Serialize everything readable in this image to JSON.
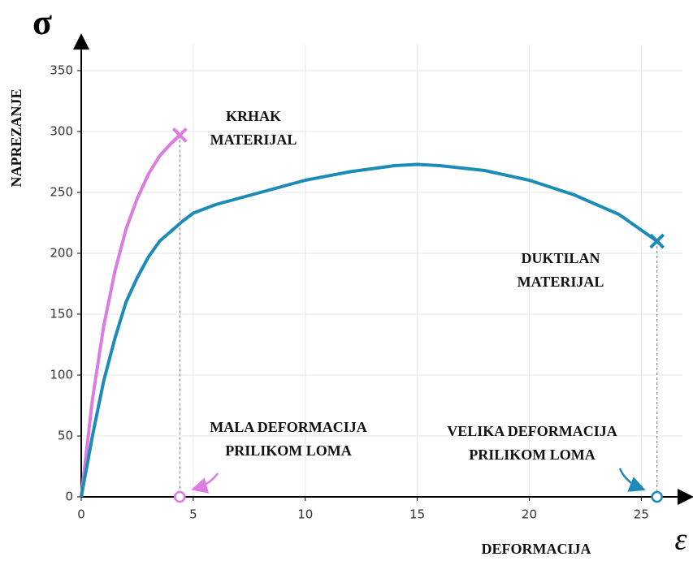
{
  "chart_data": {
    "type": "line",
    "y_symbol": "σ",
    "x_symbol": "ε",
    "ylabel": "NAPREZANJE",
    "xlabel": "DEFORMACIJA",
    "xlim": [
      0,
      27.2
    ],
    "ylim": [
      0,
      378
    ],
    "xticks": [
      0,
      5,
      10,
      15,
      20,
      25
    ],
    "yticks": [
      0,
      50,
      100,
      150,
      200,
      250,
      300,
      350
    ],
    "grid": true,
    "series": [
      {
        "color": "#dc7be0",
        "x": [
          0,
          0.5,
          1,
          1.5,
          2,
          2.5,
          3,
          3.5,
          4,
          4.4
        ],
        "values": [
          0,
          80,
          140,
          185,
          220,
          245,
          265,
          280,
          290,
          297
        ]
      },
      {
        "color": "#1d8bb8",
        "x": [
          0,
          0.5,
          1,
          1.5,
          2,
          2.5,
          3,
          3.5,
          4,
          4.5,
          5,
          6,
          8,
          10,
          12,
          14,
          15,
          16,
          18,
          20,
          22,
          24,
          25.7
        ],
        "values": [
          0,
          50,
          95,
          130,
          160,
          180,
          197,
          210,
          218,
          226,
          233,
          240,
          250,
          260,
          267,
          272,
          273,
          272,
          268,
          260,
          248,
          232,
          210
        ]
      }
    ],
    "annotations": [
      {
        "lines": [
          "KRHAK",
          "MATERIJAL"
        ]
      },
      {
        "lines": [
          "DUKTILAN",
          "MATERIJAL"
        ]
      },
      {
        "lines": [
          "MALA DEFORMACIJA",
          "PRILIKOM LOMA"
        ]
      },
      {
        "lines": [
          "VELIKA DEFORMACIJA",
          "PRILIKOM LOMA"
        ]
      }
    ]
  }
}
